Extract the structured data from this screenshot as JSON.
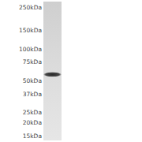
{
  "chart_data": {
    "type": "blot",
    "log": "y",
    "ylim": [
      13.5,
      280
    ],
    "yticks": [
      {
        "value": 250,
        "label": "250kDa"
      },
      {
        "value": 150,
        "label": "150kDa"
      },
      {
        "value": 100,
        "label": "100kDa"
      },
      {
        "value": 75,
        "label": "75kDa"
      },
      {
        "value": 50,
        "label": "50kDa"
      },
      {
        "value": 37,
        "label": "37kDa"
      },
      {
        "value": 25,
        "label": "25kDa"
      },
      {
        "value": 20,
        "label": "20kDa"
      },
      {
        "value": 15,
        "label": "15kDa"
      }
    ],
    "categories": [
      null
    ],
    "values": [
      57
    ],
    "color": "#2b2b2b",
    "tick_labels": "y"
  }
}
